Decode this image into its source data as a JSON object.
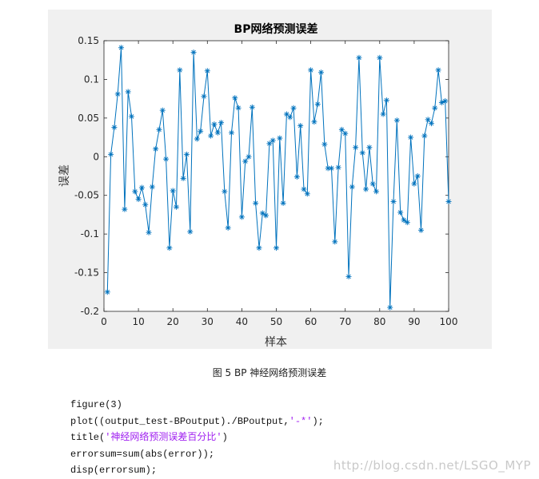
{
  "chart_data": {
    "type": "line",
    "title": "BP网络预测误差",
    "xlabel": "样本",
    "ylabel": "误差",
    "xlim": [
      0,
      100
    ],
    "ylim": [
      -0.2,
      0.15
    ],
    "xticks": [
      0,
      10,
      20,
      30,
      40,
      50,
      60,
      70,
      80,
      90,
      100
    ],
    "yticks": [
      -0.2,
      -0.15,
      -0.1,
      -0.05,
      0,
      0.05,
      0.1,
      0.15
    ],
    "xtick_labels": [
      "0",
      "10",
      "20",
      "30",
      "40",
      "50",
      "60",
      "70",
      "80",
      "90",
      "100"
    ],
    "ytick_labels": [
      "-0.2",
      "-0.15",
      "-0.1",
      "-0.05",
      "0",
      "0.05",
      "0.1",
      "0.15"
    ],
    "marker": "*",
    "line_color": "#0072bd",
    "grid": false,
    "series": [
      {
        "x": [
          1,
          2,
          3,
          4,
          5,
          6,
          7,
          8,
          9,
          10,
          11,
          12,
          13,
          14,
          15,
          16,
          17,
          18,
          19,
          20,
          21,
          22,
          23,
          24,
          25,
          26,
          27,
          28,
          29,
          30,
          31,
          32,
          33,
          34,
          35,
          36,
          37,
          38,
          39,
          40,
          41,
          42,
          43,
          44,
          45,
          46,
          47,
          48,
          49,
          50,
          51,
          52,
          53,
          54,
          55,
          56,
          57,
          58,
          59,
          60,
          61,
          62,
          63,
          64,
          65,
          66,
          67,
          68,
          69,
          70,
          71,
          72,
          73,
          74,
          75,
          76,
          77,
          78,
          79,
          80,
          81,
          82,
          83,
          84,
          85,
          86,
          87,
          88,
          89,
          90,
          91,
          92,
          93,
          94,
          95,
          96,
          97,
          98,
          99,
          100
        ],
        "y": [
          -0.175,
          0.003,
          0.038,
          0.081,
          0.141,
          -0.068,
          0.084,
          0.052,
          -0.045,
          -0.055,
          -0.04,
          -0.062,
          -0.098,
          -0.039,
          0.01,
          0.035,
          0.06,
          -0.003,
          -0.118,
          -0.044,
          -0.065,
          0.112,
          -0.028,
          0.003,
          -0.097,
          0.135,
          0.023,
          0.033,
          0.078,
          0.111,
          0.027,
          0.042,
          0.031,
          0.044,
          -0.045,
          -0.092,
          0.031,
          0.076,
          0.063,
          -0.078,
          -0.006,
          0.0,
          0.064,
          -0.06,
          -0.118,
          -0.073,
          -0.076,
          0.017,
          0.021,
          -0.118,
          0.024,
          -0.06,
          0.055,
          0.051,
          0.063,
          -0.026,
          0.04,
          -0.042,
          -0.048,
          0.112,
          0.045,
          0.068,
          0.109,
          0.016,
          -0.015,
          -0.015,
          -0.11,
          -0.014,
          0.035,
          0.03,
          -0.155,
          -0.039,
          0.012,
          0.128,
          0.005,
          -0.042,
          0.012,
          -0.035,
          -0.045,
          0.128,
          0.055,
          0.073,
          -0.195,
          -0.058,
          0.047,
          -0.072,
          -0.082,
          -0.085,
          0.025,
          -0.035,
          -0.025,
          -0.095,
          0.027,
          0.048,
          0.043,
          0.063,
          0.112,
          0.07,
          0.072,
          -0.058
        ]
      }
    ]
  },
  "caption": "图 5 BP 神经网络预测误差",
  "code": {
    "line1": "figure(3)",
    "line2_pre": "plot((output_test-BPoutput)./BPoutput,",
    "line2_str": "'-*'",
    "line2_post": ");",
    "line3_pre": "title(",
    "line3_str": "'神经网络预测误差百分比'",
    "line3_post": ")",
    "line4": "errorsum=sum(abs(error));",
    "line5": "disp(errorsum);"
  },
  "watermark": "http://blog.csdn.net/LSGO_MYP"
}
